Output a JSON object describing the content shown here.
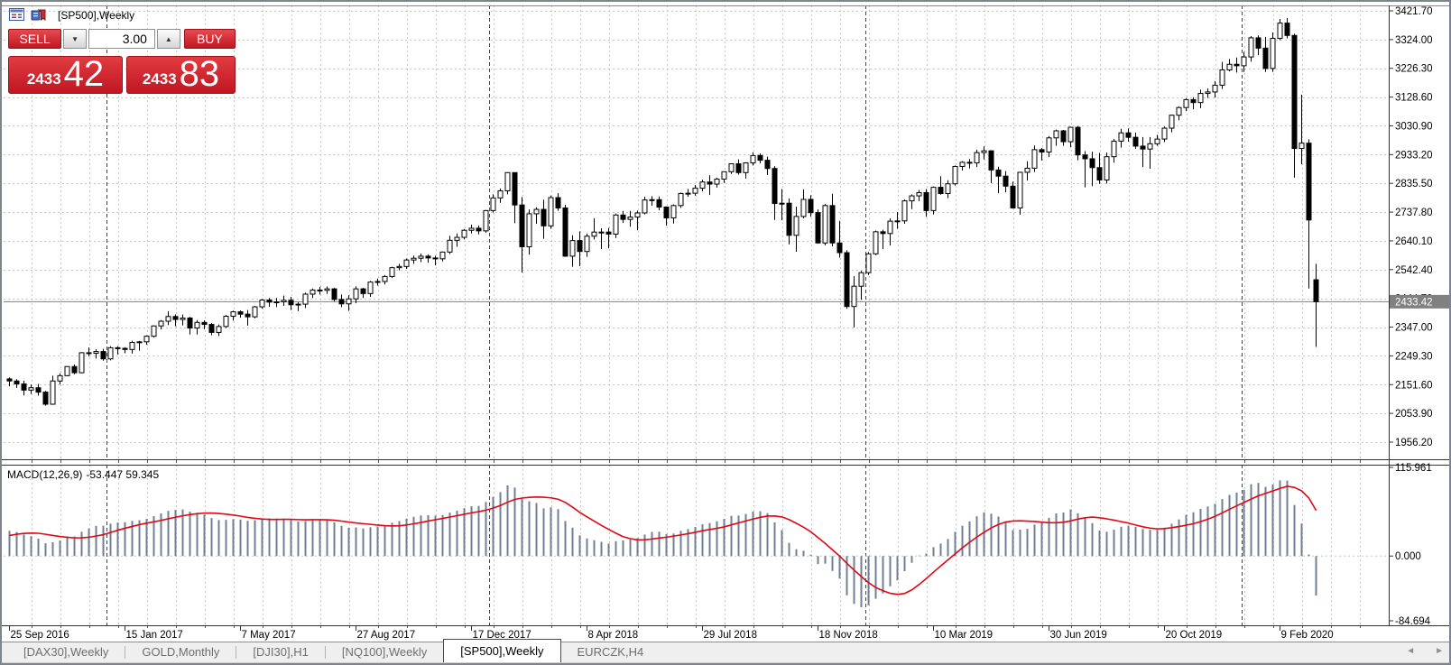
{
  "chart_header": {
    "title": "[SP500],Weekly"
  },
  "trade_panel": {
    "sell_label": "SELL",
    "buy_label": "BUY",
    "volume": "3.00",
    "spin_down": "▼",
    "spin_up": "▲",
    "sell_price_small": "2433",
    "sell_price_big": "42",
    "buy_price_small": "2433",
    "buy_price_big": "83"
  },
  "macd_panel": {
    "name_label": "MACD(12,26,9)",
    "values_label": "-53.447 59.345"
  },
  "price_badge": {
    "text": "2433.42",
    "bg": "#808080"
  },
  "tabs": {
    "items": [
      {
        "label": "[DAX30],Weekly",
        "active": false
      },
      {
        "label": "GOLD,Monthly",
        "active": false
      },
      {
        "label": "[DJI30],H1",
        "active": false
      },
      {
        "label": "[NQ100],Weekly",
        "active": false
      },
      {
        "label": "[SP500],Weekly",
        "active": true
      },
      {
        "label": "EURCZK,H4",
        "active": false
      }
    ],
    "scroll_left": "◄",
    "scroll_right": "►"
  },
  "colors": {
    "accent_red": "#d5232d",
    "badge_gray": "#808080",
    "grid_light": "#c6c6c6",
    "year_separator": "#444444",
    "bull_fill": "#ffffff",
    "bear_fill": "#000000",
    "candle_stroke": "#000000",
    "macd_bar": "#6f8096",
    "macd_signal": "#e30613",
    "current_price_line": "#808080"
  },
  "chart_data": {
    "type": "candlestick",
    "title": "[SP500],Weekly",
    "symbol": "[SP500]",
    "timeframe": "Weekly",
    "grid": true,
    "price_axis": {
      "tick_labels": [
        "3421.70",
        "3324.00",
        "3226.30",
        "3128.60",
        "3030.90",
        "2933.20",
        "2835.50",
        "2737.80",
        "2640.10",
        "2542.40",
        "2444.70",
        "2347.00",
        "2249.30",
        "2151.60",
        "2053.90",
        "1956.20"
      ],
      "top_value": 3421.7,
      "bottom_value": 1956.2,
      "current_price": 2433.42,
      "current_price_label": "2433.42"
    },
    "x_axis": {
      "tick_labels": [
        {
          "index": 0,
          "label": "25 Sep 2016"
        },
        {
          "index": 16,
          "label": "15 Jan 2017"
        },
        {
          "index": 32,
          "label": "7 May 2017"
        },
        {
          "index": 48,
          "label": "27 Aug 2017"
        },
        {
          "index": 64,
          "label": "17 Dec 2017"
        },
        {
          "index": 80,
          "label": "8 Apr 2018"
        },
        {
          "index": 96,
          "label": "29 Jul 2018"
        },
        {
          "index": 112,
          "label": "18 Nov 2018"
        },
        {
          "index": 128,
          "label": "10 Mar 2019"
        },
        {
          "index": 144,
          "label": "30 Jun 2019"
        },
        {
          "index": 160,
          "label": "20 Oct 2019"
        },
        {
          "index": 176,
          "label": "9 Feb 2020"
        }
      ],
      "year_separator_x": [
        116,
        540,
        957,
        1374
      ]
    },
    "candles": [
      [
        2171,
        2176,
        2146,
        2164
      ],
      [
        2164,
        2170,
        2141,
        2154
      ],
      [
        2154,
        2165,
        2115,
        2133
      ],
      [
        2133,
        2152,
        2120,
        2141
      ],
      [
        2141,
        2154,
        2114,
        2126
      ],
      [
        2126,
        2130,
        2080,
        2085
      ],
      [
        2085,
        2182,
        2083,
        2164
      ],
      [
        2164,
        2190,
        2152,
        2182
      ],
      [
        2182,
        2214,
        2180,
        2213
      ],
      [
        2213,
        2220,
        2187,
        2192
      ],
      [
        2192,
        2262,
        2190,
        2260
      ],
      [
        2260,
        2278,
        2248,
        2258
      ],
      [
        2258,
        2272,
        2240,
        2264
      ],
      [
        2264,
        2273,
        2233,
        2239
      ],
      [
        2239,
        2282,
        2234,
        2277
      ],
      [
        2277,
        2282,
        2254,
        2275
      ],
      [
        2275,
        2279,
        2258,
        2271
      ],
      [
        2271,
        2301,
        2257,
        2295
      ],
      [
        2295,
        2300,
        2267,
        2297
      ],
      [
        2297,
        2319,
        2287,
        2316
      ],
      [
        2316,
        2353,
        2311,
        2351
      ],
      [
        2351,
        2371,
        2339,
        2367
      ],
      [
        2367,
        2401,
        2354,
        2383
      ],
      [
        2383,
        2390,
        2350,
        2373
      ],
      [
        2373,
        2390,
        2353,
        2378
      ],
      [
        2378,
        2382,
        2322,
        2344
      ],
      [
        2344,
        2371,
        2322,
        2363
      ],
      [
        2363,
        2370,
        2340,
        2356
      ],
      [
        2356,
        2361,
        2319,
        2329
      ],
      [
        2329,
        2356,
        2317,
        2349
      ],
      [
        2349,
        2389,
        2344,
        2384
      ],
      [
        2384,
        2403,
        2369,
        2399
      ],
      [
        2399,
        2404,
        2379,
        2391
      ],
      [
        2391,
        2405,
        2352,
        2382
      ],
      [
        2382,
        2419,
        2377,
        2416
      ],
      [
        2416,
        2442,
        2410,
        2439
      ],
      [
        2439,
        2446,
        2416,
        2432
      ],
      [
        2432,
        2446,
        2415,
        2433
      ],
      [
        2433,
        2454,
        2419,
        2438
      ],
      [
        2438,
        2450,
        2405,
        2423
      ],
      [
        2423,
        2432,
        2401,
        2425
      ],
      [
        2425,
        2464,
        2412,
        2459
      ],
      [
        2459,
        2478,
        2446,
        2473
      ],
      [
        2473,
        2484,
        2458,
        2472
      ],
      [
        2472,
        2485,
        2460,
        2477
      ],
      [
        2477,
        2480,
        2434,
        2441
      ],
      [
        2441,
        2458,
        2415,
        2426
      ],
      [
        2426,
        2455,
        2402,
        2443
      ],
      [
        2443,
        2486,
        2428,
        2477
      ],
      [
        2477,
        2480,
        2446,
        2461
      ],
      [
        2461,
        2504,
        2450,
        2500
      ],
      [
        2500,
        2512,
        2488,
        2502
      ],
      [
        2502,
        2524,
        2492,
        2519
      ],
      [
        2519,
        2552,
        2514,
        2549
      ],
      [
        2549,
        2562,
        2540,
        2553
      ],
      [
        2553,
        2580,
        2545,
        2575
      ],
      [
        2575,
        2590,
        2562,
        2581
      ],
      [
        2581,
        2597,
        2568,
        2588
      ],
      [
        2588,
        2594,
        2566,
        2582
      ],
      [
        2582,
        2590,
        2557,
        2579
      ],
      [
        2579,
        2604,
        2570,
        2602
      ],
      [
        2602,
        2657,
        2595,
        2642
      ],
      [
        2642,
        2665,
        2620,
        2652
      ],
      [
        2652,
        2680,
        2645,
        2676
      ],
      [
        2676,
        2695,
        2665,
        2683
      ],
      [
        2683,
        2692,
        2662,
        2674
      ],
      [
        2674,
        2745,
        2668,
        2743
      ],
      [
        2743,
        2798,
        2736,
        2786
      ],
      [
        2786,
        2818,
        2769,
        2810
      ],
      [
        2810,
        2873,
        2798,
        2872
      ],
      [
        2872,
        2873,
        2700,
        2762
      ],
      [
        2762,
        2789,
        2533,
        2620
      ],
      [
        2620,
        2747,
        2593,
        2732
      ],
      [
        2732,
        2754,
        2698,
        2747
      ],
      [
        2747,
        2780,
        2647,
        2691
      ],
      [
        2691,
        2794,
        2681,
        2787
      ],
      [
        2787,
        2802,
        2742,
        2752
      ],
      [
        2752,
        2762,
        2586,
        2588
      ],
      [
        2588,
        2659,
        2552,
        2641
      ],
      [
        2641,
        2672,
        2554,
        2604
      ],
      [
        2604,
        2665,
        2586,
        2656
      ],
      [
        2656,
        2717,
        2645,
        2670
      ],
      [
        2670,
        2683,
        2612,
        2670
      ],
      [
        2670,
        2684,
        2615,
        2663
      ],
      [
        2663,
        2733,
        2650,
        2728
      ],
      [
        2728,
        2742,
        2701,
        2713
      ],
      [
        2713,
        2742,
        2688,
        2721
      ],
      [
        2721,
        2743,
        2676,
        2735
      ],
      [
        2735,
        2790,
        2730,
        2779
      ],
      [
        2779,
        2792,
        2759,
        2780
      ],
      [
        2780,
        2791,
        2744,
        2755
      ],
      [
        2755,
        2757,
        2692,
        2718
      ],
      [
        2718,
        2764,
        2699,
        2760
      ],
      [
        2760,
        2804,
        2752,
        2801
      ],
      [
        2801,
        2816,
        2790,
        2802
      ],
      [
        2802,
        2830,
        2794,
        2819
      ],
      [
        2819,
        2848,
        2808,
        2840
      ],
      [
        2840,
        2863,
        2796,
        2833
      ],
      [
        2833,
        2855,
        2821,
        2850
      ],
      [
        2850,
        2876,
        2837,
        2875
      ],
      [
        2875,
        2903,
        2867,
        2902
      ],
      [
        2902,
        2917,
        2865,
        2872
      ],
      [
        2872,
        2907,
        2852,
        2905
      ],
      [
        2905,
        2941,
        2896,
        2930
      ],
      [
        2930,
        2937,
        2903,
        2914
      ],
      [
        2914,
        2926,
        2864,
        2886
      ],
      [
        2886,
        2894,
        2711,
        2767
      ],
      [
        2767,
        2816,
        2710,
        2768
      ],
      [
        2768,
        2784,
        2628,
        2659
      ],
      [
        2659,
        2756,
        2603,
        2723
      ],
      [
        2723,
        2815,
        2717,
        2781
      ],
      [
        2781,
        2795,
        2722,
        2736
      ],
      [
        2736,
        2747,
        2631,
        2633
      ],
      [
        2633,
        2765,
        2625,
        2760
      ],
      [
        2760,
        2800,
        2621,
        2633
      ],
      [
        2633,
        2708,
        2583,
        2600
      ],
      [
        2600,
        2608,
        2409,
        2417
      ],
      [
        2417,
        2520,
        2346,
        2486
      ],
      [
        2486,
        2538,
        2440,
        2532
      ],
      [
        2532,
        2602,
        2524,
        2596
      ],
      [
        2596,
        2675,
        2592,
        2671
      ],
      [
        2671,
        2678,
        2612,
        2665
      ],
      [
        2665,
        2716,
        2624,
        2707
      ],
      [
        2707,
        2738,
        2681,
        2708
      ],
      [
        2708,
        2780,
        2698,
        2776
      ],
      [
        2776,
        2798,
        2748,
        2793
      ],
      [
        2793,
        2813,
        2775,
        2804
      ],
      [
        2804,
        2816,
        2722,
        2743
      ],
      [
        2743,
        2825,
        2730,
        2822
      ],
      [
        2822,
        2860,
        2797,
        2801
      ],
      [
        2801,
        2846,
        2785,
        2834
      ],
      [
        2834,
        2896,
        2828,
        2893
      ],
      [
        2893,
        2911,
        2879,
        2907
      ],
      [
        2907,
        2918,
        2886,
        2905
      ],
      [
        2905,
        2950,
        2891,
        2940
      ],
      [
        2940,
        2961,
        2917,
        2946
      ],
      [
        2946,
        2948,
        2836,
        2881
      ],
      [
        2881,
        2892,
        2802,
        2860
      ],
      [
        2860,
        2877,
        2805,
        2826
      ],
      [
        2826,
        2841,
        2750,
        2752
      ],
      [
        2752,
        2875,
        2729,
        2873
      ],
      [
        2873,
        2911,
        2845,
        2887
      ],
      [
        2887,
        2964,
        2874,
        2950
      ],
      [
        2950,
        2956,
        2913,
        2942
      ],
      [
        2942,
        2996,
        2925,
        2990
      ],
      [
        2990,
        3018,
        2963,
        3014
      ],
      [
        3014,
        3017,
        2963,
        2977
      ],
      [
        2977,
        3028,
        2958,
        3026
      ],
      [
        3026,
        3030,
        2914,
        2932
      ],
      [
        2932,
        2945,
        2822,
        2919
      ],
      [
        2919,
        2943,
        2826,
        2889
      ],
      [
        2889,
        2939,
        2834,
        2847
      ],
      [
        2847,
        2940,
        2835,
        2926
      ],
      [
        2926,
        2986,
        2906,
        2979
      ],
      [
        2979,
        3021,
        2957,
        3007
      ],
      [
        3007,
        3022,
        2977,
        2992
      ],
      [
        2992,
        3008,
        2953,
        2962
      ],
      [
        2962,
        2993,
        2891,
        2952
      ],
      [
        2952,
        2993,
        2885,
        2970
      ],
      [
        2970,
        3000,
        2963,
        2986
      ],
      [
        2986,
        3028,
        2976,
        3023
      ],
      [
        3023,
        3069,
        3009,
        3067
      ],
      [
        3067,
        3097,
        3050,
        3093
      ],
      [
        3093,
        3125,
        3081,
        3120
      ],
      [
        3120,
        3128,
        3087,
        3110
      ],
      [
        3110,
        3154,
        3091,
        3141
      ],
      [
        3141,
        3158,
        3126,
        3146
      ],
      [
        3146,
        3183,
        3127,
        3169
      ],
      [
        3169,
        3248,
        3156,
        3221
      ],
      [
        3221,
        3258,
        3216,
        3240
      ],
      [
        3240,
        3263,
        3212,
        3235
      ],
      [
        3235,
        3282,
        3214,
        3265
      ],
      [
        3265,
        3336,
        3249,
        3330
      ],
      [
        3330,
        3338,
        3271,
        3295
      ],
      [
        3295,
        3333,
        3214,
        3226
      ],
      [
        3226,
        3348,
        3214,
        3328
      ],
      [
        3328,
        3394,
        3322,
        3380
      ],
      [
        3380,
        3397,
        3328,
        3338
      ],
      [
        3338,
        3344,
        2855,
        2954
      ],
      [
        2954,
        3137,
        2901,
        2972
      ],
      [
        2972,
        2985,
        2478,
        2711
      ],
      [
        2508,
        2562,
        2280,
        2433.4
      ]
    ],
    "macd": {
      "label": "MACD(12,26,9)",
      "params": [
        12,
        26,
        9
      ],
      "last_main": -53.447,
      "last_signal": 59.345,
      "axis_labels": [
        {
          "text": "115.961",
          "value": 115.961
        },
        {
          "text": "0.000",
          "value": 0
        },
        {
          "text": "-84.694",
          "value": -84.694
        }
      ],
      "axis_max": 115.961,
      "axis_min": -84.694,
      "indicator_preroll_closes": [
        2020,
        2035,
        2048,
        2060,
        2041,
        2052,
        2063,
        2074,
        2085,
        2080,
        2071,
        2066,
        2091,
        2099,
        2096,
        2102,
        2084,
        2078,
        2099,
        2119,
        2139,
        2159,
        2176,
        2181,
        2172,
        2168
      ]
    }
  }
}
